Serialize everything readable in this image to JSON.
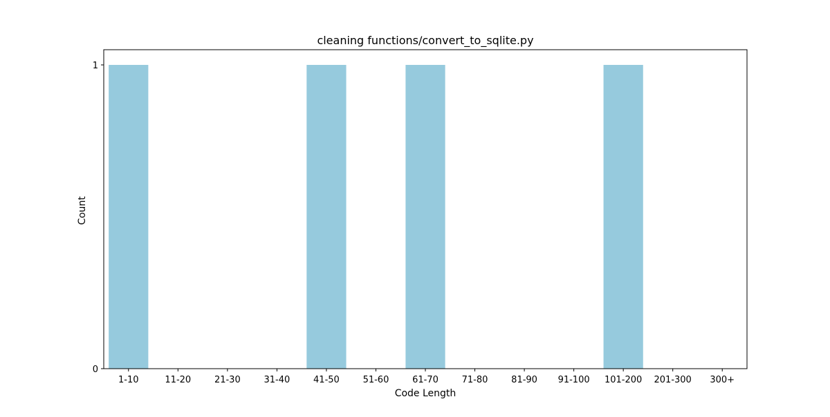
{
  "chart_data": {
    "type": "bar",
    "title": "cleaning functions/convert_to_sqlite.py",
    "xlabel": "Code Length",
    "ylabel": "Count",
    "categories": [
      "1-10",
      "11-20",
      "21-30",
      "31-40",
      "41-50",
      "51-60",
      "61-70",
      "71-80",
      "81-90",
      "91-100",
      "101-200",
      "201-300",
      "300+"
    ],
    "values": [
      1,
      0,
      0,
      0,
      1,
      0,
      1,
      0,
      0,
      0,
      1,
      0,
      0
    ],
    "ylim": [
      0,
      1.05
    ],
    "yticks": [
      0,
      1
    ],
    "grid": false,
    "bar_color": "#96cadd"
  }
}
